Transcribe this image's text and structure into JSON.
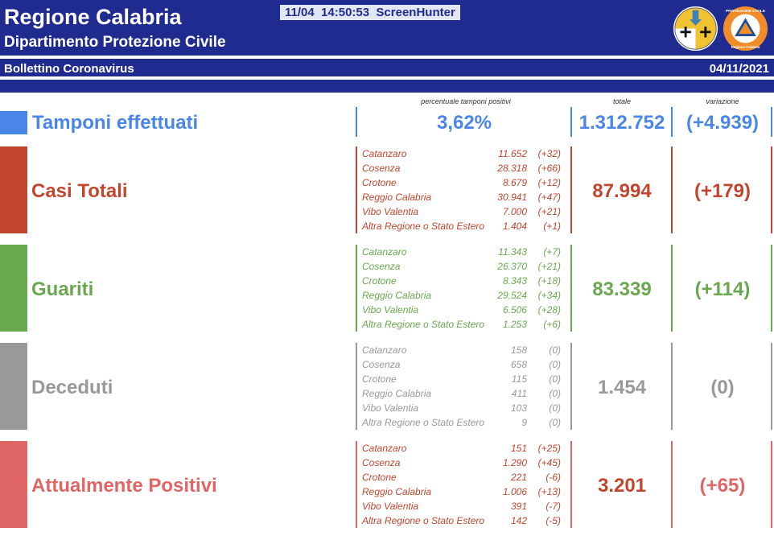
{
  "header": {
    "title": "Regione Calabria",
    "subtitle": "Dipartimento Protezione Civile",
    "watermark": "11/04  14:50:53  ScreenHunter",
    "logo_pc_text": "PROTEZIONE CIVILE",
    "logo_pc_region": "Regione Calabria"
  },
  "subbar": {
    "label": "Bollettino Coronavirus",
    "date": "04/11/2021"
  },
  "column_headers": {
    "percent": "percentuale tamponi positivi",
    "total": "totale",
    "variation": "variazione"
  },
  "colors": {
    "header": "#1f2b8f",
    "tamponi": "#4a86e8",
    "casi": "#c2452d",
    "guariti": "#6aa84f",
    "deceduti": "#999999",
    "positivi": "#e06666"
  },
  "tamponi": {
    "label": "Tamponi effettuati",
    "percent": "3,62%",
    "total": "1.312.752",
    "variation": "(+4.939)"
  },
  "sections": {
    "casi": {
      "label": "Casi Totali",
      "total": "87.994",
      "variation": "(+179)",
      "rows": [
        {
          "name": "Catanzaro",
          "value": "11.652",
          "delta": "(+32)"
        },
        {
          "name": "Cosenza",
          "value": "28.318",
          "delta": "(+66)"
        },
        {
          "name": "Crotone",
          "value": "8.679",
          "delta": "(+12)"
        },
        {
          "name": "Reggio Calabria",
          "value": "30.941",
          "delta": "(+47)"
        },
        {
          "name": "Vibo Valentia",
          "value": "7.000",
          "delta": "(+21)"
        },
        {
          "name": "Altra Regione o Stato Estero",
          "value": "1.404",
          "delta": "(+1)"
        }
      ]
    },
    "guariti": {
      "label": "Guariti",
      "total": "83.339",
      "variation": "(+114)",
      "rows": [
        {
          "name": "Catanzaro",
          "value": "11.343",
          "delta": "(+7)"
        },
        {
          "name": "Cosenza",
          "value": "26.370",
          "delta": "(+21)"
        },
        {
          "name": "Crotone",
          "value": "8.343",
          "delta": "(+18)"
        },
        {
          "name": "Reggio Calabria",
          "value": "29.524",
          "delta": "(+34)"
        },
        {
          "name": "Vibo Valentia",
          "value": "6.506",
          "delta": "(+28)"
        },
        {
          "name": "Altra Regione o Stato Estero",
          "value": "1.253",
          "delta": "(+6)"
        }
      ]
    },
    "deceduti": {
      "label": "Deceduti",
      "total": "1.454",
      "variation": "(0)",
      "rows": [
        {
          "name": "Catanzaro",
          "value": "158",
          "delta": "(0)"
        },
        {
          "name": "Cosenza",
          "value": "658",
          "delta": "(0)"
        },
        {
          "name": "Crotone",
          "value": "115",
          "delta": "(0)"
        },
        {
          "name": "Reggio Calabria",
          "value": "411",
          "delta": "(0)"
        },
        {
          "name": "Vibo Valentia",
          "value": "103",
          "delta": "(0)"
        },
        {
          "name": "Altra Regione o Stato Estero",
          "value": "9",
          "delta": "(0)"
        }
      ]
    },
    "positivi": {
      "label": "Attualmente Positivi",
      "total": "3.201",
      "variation": "(+65)",
      "rows": [
        {
          "name": "Catanzaro",
          "value": "151",
          "delta": "(+25)"
        },
        {
          "name": "Cosenza",
          "value": "1.290",
          "delta": "(+45)"
        },
        {
          "name": "Crotone",
          "value": "221",
          "delta": "(-6)"
        },
        {
          "name": "Reggio Calabria",
          "value": "1.006",
          "delta": "(+13)"
        },
        {
          "name": "Vibo Valentia",
          "value": "391",
          "delta": "(-7)"
        },
        {
          "name": "Altra Regione o Stato Estero",
          "value": "142",
          "delta": "(-5)"
        }
      ]
    }
  }
}
